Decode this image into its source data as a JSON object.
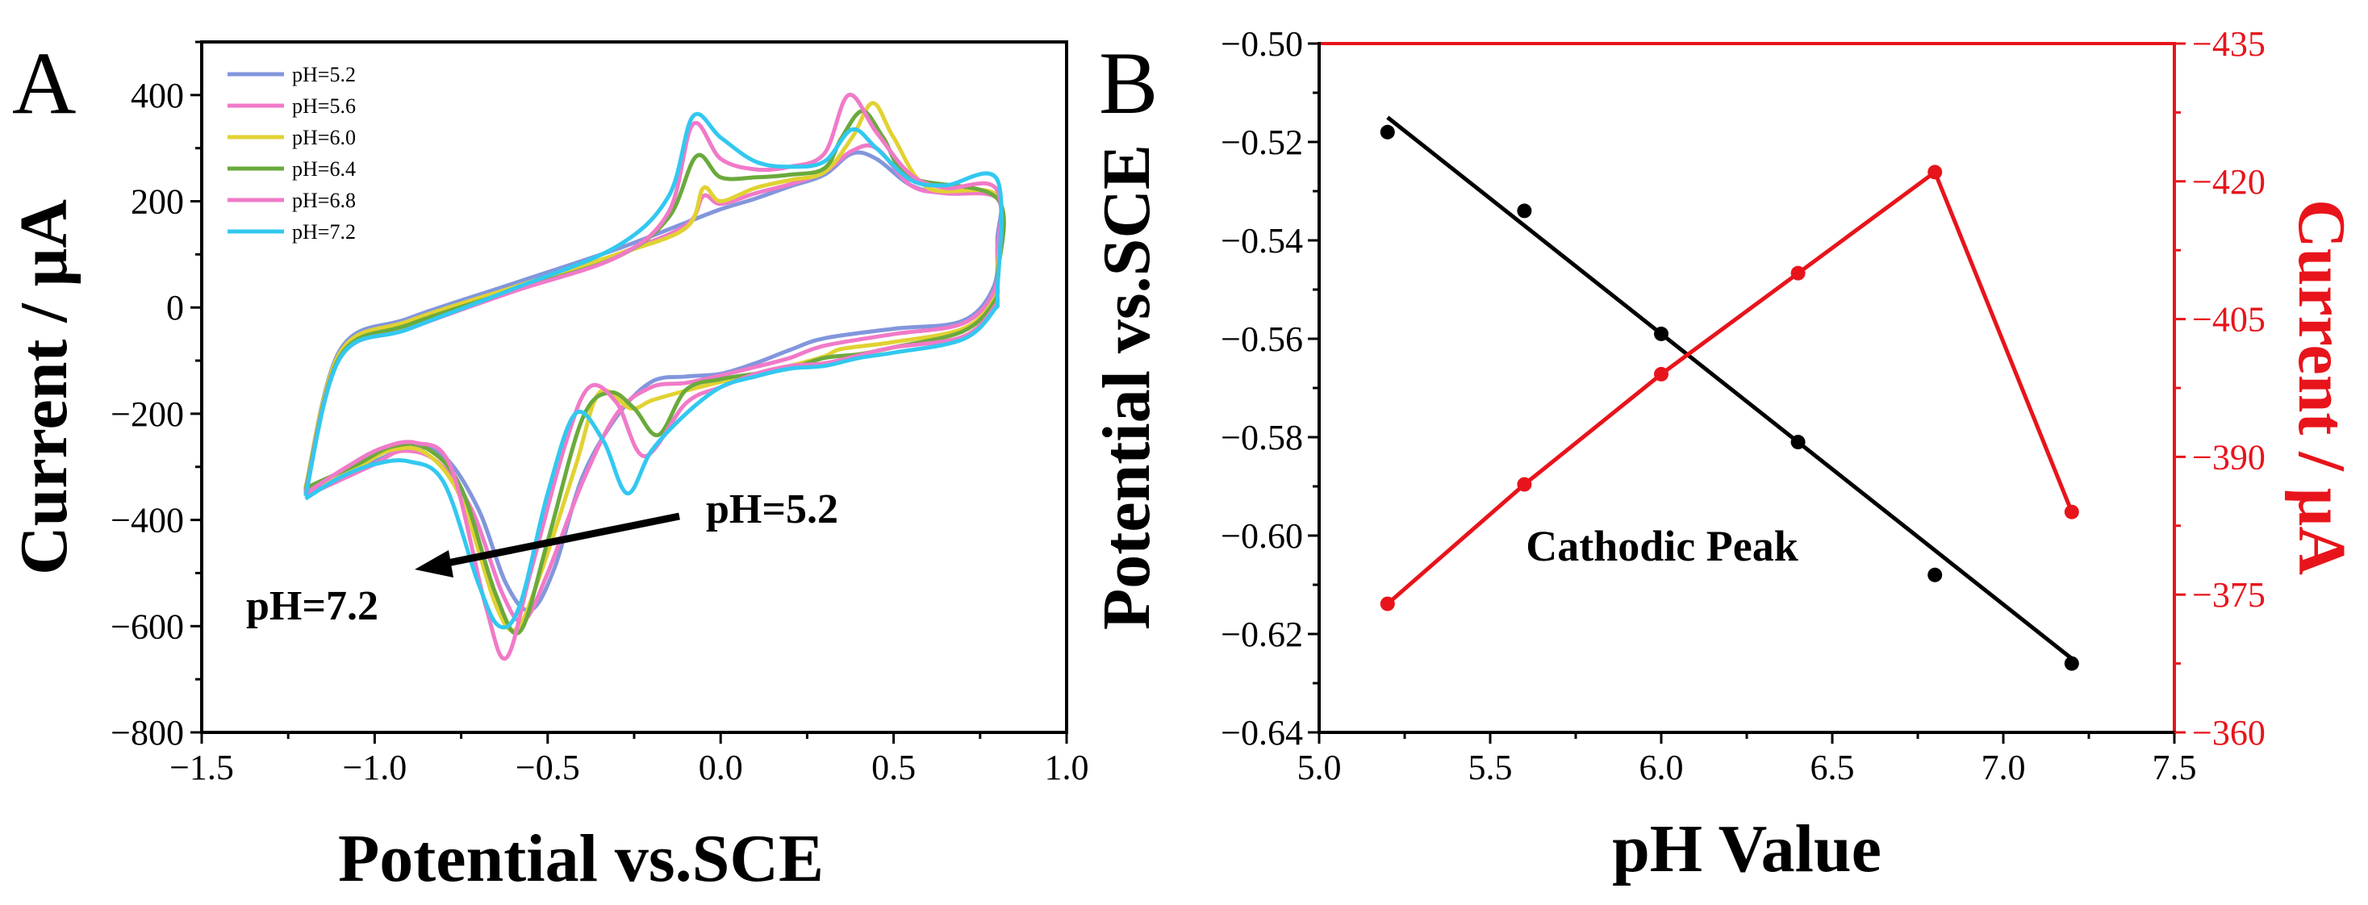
{
  "chart_data": [
    {
      "panel": "A",
      "type": "line",
      "xlabel": "Potential vs.SCE",
      "ylabel": "Current / μA",
      "xlim": [
        -1.5,
        1.0
      ],
      "ylim": [
        -800,
        500
      ],
      "xticks": [
        "−1.5",
        "−1.0",
        "−0.5",
        "0.0",
        "0.5",
        "1.0"
      ],
      "yticks": [
        "−800",
        "−600",
        "−400",
        "−200",
        "0",
        "200",
        "400"
      ],
      "xtick_values": [
        -1.5,
        -1.0,
        -0.5,
        0.0,
        0.5,
        1.0
      ],
      "ytick_values": [
        -800,
        -600,
        -400,
        -200,
        0,
        200,
        400
      ],
      "legend_position": "top-left",
      "annotations": [
        "pH=5.2",
        "pH=7.2"
      ],
      "series": [
        {
          "name": "pH=5.2",
          "color": "#8296dc",
          "oxidation": [
            [
              -1.2,
              -340
            ],
            [
              -1.1,
              -80
            ],
            [
              -0.9,
              -20
            ],
            [
              -0.6,
              45
            ],
            [
              -0.3,
              110
            ],
            [
              -0.1,
              160
            ],
            [
              0.0,
              185
            ],
            [
              0.1,
              205
            ],
            [
              0.2,
              228
            ],
            [
              0.3,
              250
            ],
            [
              0.38,
              290
            ],
            [
              0.45,
              280
            ],
            [
              0.55,
              230
            ],
            [
              0.65,
              215
            ],
            [
              0.8,
              210
            ]
          ],
          "reduction": [
            [
              0.8,
              130
            ],
            [
              0.79,
              40
            ],
            [
              0.7,
              -25
            ],
            [
              0.5,
              -40
            ],
            [
              0.3,
              -58
            ],
            [
              0.2,
              -80
            ],
            [
              0.1,
              -105
            ],
            [
              0.0,
              -125
            ],
            [
              -0.1,
              -130
            ],
            [
              -0.2,
              -140
            ],
            [
              -0.3,
              -205
            ],
            [
              -0.4,
              -320
            ],
            [
              -0.48,
              -490
            ],
            [
              -0.55,
              -570
            ],
            [
              -0.62,
              -520
            ],
            [
              -0.7,
              -380
            ],
            [
              -0.8,
              -280
            ],
            [
              -0.9,
              -265
            ],
            [
              -1.0,
              -290
            ],
            [
              -1.1,
              -320
            ],
            [
              -1.2,
              -350
            ]
          ]
        },
        {
          "name": "pH=5.6",
          "color": "#f07ac8",
          "oxidation": [
            [
              -1.2,
              -345
            ],
            [
              -1.1,
              -90
            ],
            [
              -0.9,
              -30
            ],
            [
              -0.6,
              35
            ],
            [
              -0.3,
              100
            ],
            [
              -0.1,
              155
            ],
            [
              -0.05,
              210
            ],
            [
              0.0,
              195
            ],
            [
              0.1,
              215
            ],
            [
              0.2,
              232
            ],
            [
              0.3,
              255
            ],
            [
              0.38,
              295
            ],
            [
              0.45,
              300
            ],
            [
              0.55,
              230
            ],
            [
              0.65,
              215
            ],
            [
              0.8,
              205
            ]
          ],
          "reduction": [
            [
              0.8,
              110
            ],
            [
              0.79,
              30
            ],
            [
              0.7,
              -30
            ],
            [
              0.5,
              -50
            ],
            [
              0.3,
              -72
            ],
            [
              0.2,
              -95
            ],
            [
              0.1,
              -112
            ],
            [
              0.0,
              -128
            ],
            [
              -0.1,
              -142
            ],
            [
              -0.2,
              -150
            ],
            [
              -0.3,
              -200
            ],
            [
              -0.4,
              -330
            ],
            [
              -0.5,
              -500
            ],
            [
              -0.57,
              -590
            ],
            [
              -0.63,
              -540
            ],
            [
              -0.72,
              -380
            ],
            [
              -0.82,
              -290
            ],
            [
              -0.92,
              -270
            ],
            [
              -1.0,
              -295
            ],
            [
              -1.1,
              -325
            ],
            [
              -1.2,
              -355
            ]
          ]
        },
        {
          "name": "pH=6.0",
          "color": "#e1d232",
          "oxidation": [
            [
              -1.2,
              -340
            ],
            [
              -1.1,
              -85
            ],
            [
              -0.9,
              -25
            ],
            [
              -0.6,
              38
            ],
            [
              -0.3,
              100
            ],
            [
              -0.1,
              150
            ],
            [
              -0.05,
              225
            ],
            [
              0.0,
              200
            ],
            [
              0.1,
              225
            ],
            [
              0.2,
              240
            ],
            [
              0.3,
              255
            ],
            [
              0.38,
              320
            ],
            [
              0.44,
              385
            ],
            [
              0.5,
              320
            ],
            [
              0.6,
              225
            ],
            [
              0.8,
              210
            ]
          ],
          "reduction": [
            [
              0.8,
              70
            ],
            [
              0.79,
              15
            ],
            [
              0.7,
              -40
            ],
            [
              0.5,
              -65
            ],
            [
              0.35,
              -78
            ],
            [
              0.3,
              -92
            ],
            [
              0.2,
              -110
            ],
            [
              0.1,
              -125
            ],
            [
              0.0,
              -140
            ],
            [
              -0.12,
              -160
            ],
            [
              -0.2,
              -175
            ],
            [
              -0.26,
              -190
            ],
            [
              -0.35,
              -160
            ],
            [
              -0.42,
              -300
            ],
            [
              -0.52,
              -500
            ],
            [
              -0.59,
              -605
            ],
            [
              -0.65,
              -560
            ],
            [
              -0.75,
              -360
            ],
            [
              -0.85,
              -275
            ],
            [
              -0.95,
              -268
            ],
            [
              -1.05,
              -300
            ],
            [
              -1.2,
              -345
            ]
          ]
        },
        {
          "name": "pH=6.4",
          "color": "#6aaa3c",
          "oxidation": [
            [
              -1.2,
              -345
            ],
            [
              -1.1,
              -92
            ],
            [
              -0.9,
              -32
            ],
            [
              -0.6,
              32
            ],
            [
              -0.3,
              95
            ],
            [
              -0.15,
              170
            ],
            [
              -0.07,
              285
            ],
            [
              0.0,
              245
            ],
            [
              0.1,
              245
            ],
            [
              0.2,
              250
            ],
            [
              0.3,
              262
            ],
            [
              0.35,
              320
            ],
            [
              0.41,
              370
            ],
            [
              0.47,
              320
            ],
            [
              0.55,
              245
            ],
            [
              0.8,
              205
            ]
          ],
          "reduction": [
            [
              0.8,
              60
            ],
            [
              0.79,
              10
            ],
            [
              0.7,
              -45
            ],
            [
              0.5,
              -75
            ],
            [
              0.4,
              -88
            ],
            [
              0.3,
              -95
            ],
            [
              0.2,
              -115
            ],
            [
              0.1,
              -125
            ],
            [
              0.0,
              -135
            ],
            [
              -0.1,
              -155
            ],
            [
              -0.18,
              -240
            ],
            [
              -0.25,
              -190
            ],
            [
              -0.32,
              -160
            ],
            [
              -0.4,
              -210
            ],
            [
              -0.5,
              -440
            ],
            [
              -0.58,
              -610
            ],
            [
              -0.65,
              -540
            ],
            [
              -0.75,
              -340
            ],
            [
              -0.85,
              -265
            ],
            [
              -0.95,
              -262
            ],
            [
              -1.05,
              -295
            ],
            [
              -1.2,
              -340
            ]
          ]
        },
        {
          "name": "pH=6.8",
          "color": "#f07ac8",
          "oxidation": [
            [
              -1.2,
              -350
            ],
            [
              -1.1,
              -95
            ],
            [
              -0.9,
              -40
            ],
            [
              -0.6,
              30
            ],
            [
              -0.3,
              95
            ],
            [
              -0.15,
              180
            ],
            [
              -0.08,
              345
            ],
            [
              0.0,
              280
            ],
            [
              0.1,
              260
            ],
            [
              0.2,
              265
            ],
            [
              0.3,
              290
            ],
            [
              0.37,
              400
            ],
            [
              0.45,
              330
            ],
            [
              0.55,
              250
            ],
            [
              0.65,
              225
            ],
            [
              0.8,
              220
            ]
          ],
          "reduction": [
            [
              0.8,
              40
            ],
            [
              0.79,
              0
            ],
            [
              0.7,
              -55
            ],
            [
              0.5,
              -75
            ],
            [
              0.4,
              -90
            ],
            [
              0.3,
              -105
            ],
            [
              0.2,
              -110
            ],
            [
              0.1,
              -125
            ],
            [
              0.0,
              -150
            ],
            [
              -0.1,
              -180
            ],
            [
              -0.22,
              -280
            ],
            [
              -0.3,
              -180
            ],
            [
              -0.38,
              -150
            ],
            [
              -0.45,
              -260
            ],
            [
              -0.55,
              -500
            ],
            [
              -0.62,
              -660
            ],
            [
              -0.68,
              -560
            ],
            [
              -0.78,
              -300
            ],
            [
              -0.88,
              -255
            ],
            [
              -0.98,
              -265
            ],
            [
              -1.08,
              -300
            ],
            [
              -1.2,
              -350
            ]
          ]
        },
        {
          "name": "pH=7.2",
          "color": "#32c8f0",
          "oxidation": [
            [
              -1.2,
              -355
            ],
            [
              -1.1,
              -95
            ],
            [
              -0.9,
              -40
            ],
            [
              -0.6,
              35
            ],
            [
              -0.3,
              115
            ],
            [
              -0.15,
              210
            ],
            [
              -0.08,
              360
            ],
            [
              0.0,
              320
            ],
            [
              0.1,
              275
            ],
            [
              0.2,
              265
            ],
            [
              0.3,
              275
            ],
            [
              0.38,
              335
            ],
            [
              0.45,
              300
            ],
            [
              0.55,
              240
            ],
            [
              0.65,
              230
            ],
            [
              0.8,
              240
            ]
          ],
          "reduction": [
            [
              0.8,
              30
            ],
            [
              0.79,
              -5
            ],
            [
              0.7,
              -60
            ],
            [
              0.5,
              -85
            ],
            [
              0.4,
              -95
            ],
            [
              0.3,
              -110
            ],
            [
              0.2,
              -115
            ],
            [
              0.1,
              -130
            ],
            [
              0.0,
              -150
            ],
            [
              -0.1,
              -200
            ],
            [
              -0.2,
              -270
            ],
            [
              -0.27,
              -350
            ],
            [
              -0.34,
              -250
            ],
            [
              -0.42,
              -200
            ],
            [
              -0.5,
              -350
            ],
            [
              -0.58,
              -560
            ],
            [
              -0.64,
              -600
            ],
            [
              -0.7,
              -520
            ],
            [
              -0.8,
              -330
            ],
            [
              -0.9,
              -290
            ],
            [
              -1.0,
              -295
            ],
            [
              -1.1,
              -320
            ],
            [
              -1.2,
              -360
            ]
          ]
        }
      ]
    },
    {
      "panel": "B",
      "type": "line",
      "xlabel": "pH Value",
      "ylabel": "Potential vs.SCE",
      "y2label": "Current / μA",
      "xlim": [
        5.0,
        7.5
      ],
      "ylim": [
        -0.64,
        -0.5
      ],
      "y2lim": [
        -360,
        -435
      ],
      "xticks": [
        "5.0",
        "5.5",
        "6.0",
        "6.5",
        "7.0",
        "7.5"
      ],
      "yticks": [
        "−0.64",
        "−0.62",
        "−0.60",
        "−0.58",
        "−0.56",
        "−0.54",
        "−0.52",
        "−0.50"
      ],
      "y2ticks": [
        "−360",
        "−375",
        "−390",
        "−405",
        "−420",
        "−435"
      ],
      "xtick_values": [
        5.0,
        5.5,
        6.0,
        6.5,
        7.0,
        7.5
      ],
      "ytick_values": [
        -0.64,
        -0.62,
        -0.6,
        -0.58,
        -0.56,
        -0.54,
        -0.52,
        -0.5
      ],
      "y2tick_values": [
        -360,
        -375,
        -390,
        -405,
        -420,
        -435
      ],
      "annotation": "Cathodic Peak",
      "series": [
        {
          "axis": "left",
          "color": "#000000",
          "x": [
            5.2,
            5.6,
            6.0,
            6.4,
            6.8,
            7.2
          ],
          "y": [
            -0.518,
            -0.534,
            -0.559,
            -0.581,
            -0.608,
            -0.626
          ],
          "fit": {
            "x": [
              5.2,
              7.2
            ],
            "y": [
              -0.515,
              -0.625
            ]
          }
        },
        {
          "axis": "right",
          "color": "#e8141b",
          "x": [
            5.2,
            5.6,
            6.0,
            6.4,
            6.8,
            7.2
          ],
          "y": [
            -374,
            -387,
            -399,
            -410,
            -421,
            -384
          ]
        }
      ]
    }
  ],
  "panel_labels": [
    "A",
    "B"
  ]
}
